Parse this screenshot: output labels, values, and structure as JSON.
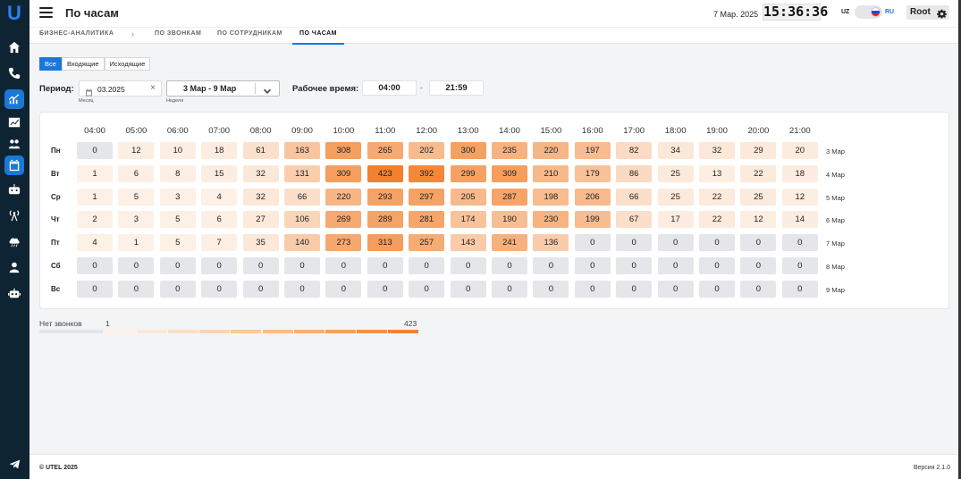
{
  "app": {
    "logo": "U",
    "page_title": "По часам"
  },
  "header": {
    "date": "7 Мар. 2025",
    "clock": "15:36:36",
    "lang_uz": "UZ",
    "lang_ru": "RU",
    "user": "Root"
  },
  "breadcrumbs": [
    {
      "label": "БИЗНЕС-АНАЛИТИКА",
      "active": false
    },
    {
      "label": "ПО ЗВОНКАМ",
      "active": false
    },
    {
      "label": "ПО СОТРУДНИКАМ",
      "active": false
    },
    {
      "label": "ПО ЧАСАМ",
      "active": true
    }
  ],
  "filters": {
    "call_types": [
      {
        "label": "Все",
        "active": true
      },
      {
        "label": "Входящие",
        "active": false
      },
      {
        "label": "Исходящие",
        "active": false
      }
    ],
    "period_label": "Период:",
    "month_value": "03.2025",
    "month_clear": "×",
    "month_sublabel": "Месяц",
    "week_value": "3 Мар - 9 Мар",
    "week_sublabel": "Неделя",
    "work_time_label": "Рабочее время:",
    "work_from": "04:00",
    "work_dash": "-",
    "work_to": "21:59"
  },
  "heatmap": {
    "hours": [
      "04:00",
      "05:00",
      "06:00",
      "07:00",
      "08:00",
      "09:00",
      "10:00",
      "11:00",
      "12:00",
      "13:00",
      "14:00",
      "15:00",
      "16:00",
      "17:00",
      "18:00",
      "19:00",
      "20:00",
      "21:00"
    ],
    "max": 423,
    "rows": [
      {
        "day": "Пн",
        "date": "3 Мар",
        "values": [
          0,
          12,
          10,
          18,
          61,
          163,
          308,
          265,
          202,
          300,
          235,
          220,
          197,
          82,
          34,
          32,
          29,
          20
        ]
      },
      {
        "day": "Вт",
        "date": "4 Мар",
        "values": [
          1,
          6,
          8,
          15,
          32,
          131,
          309,
          423,
          392,
          299,
          309,
          210,
          179,
          86,
          25,
          13,
          22,
          18
        ]
      },
      {
        "day": "Ср",
        "date": "5 Мар",
        "values": [
          1,
          5,
          3,
          4,
          32,
          66,
          220,
          293,
          297,
          205,
          287,
          198,
          206,
          66,
          25,
          22,
          25,
          12
        ]
      },
      {
        "day": "Чт",
        "date": "6 Мар",
        "values": [
          2,
          3,
          5,
          6,
          27,
          106,
          269,
          289,
          281,
          174,
          190,
          230,
          199,
          67,
          17,
          22,
          12,
          14
        ]
      },
      {
        "day": "Пт",
        "date": "7 Мар",
        "values": [
          4,
          1,
          5,
          7,
          35,
          140,
          273,
          313,
          257,
          143,
          241,
          136,
          0,
          0,
          0,
          0,
          0,
          0
        ]
      },
      {
        "day": "Сб",
        "date": "8 Мар",
        "values": [
          0,
          0,
          0,
          0,
          0,
          0,
          0,
          0,
          0,
          0,
          0,
          0,
          0,
          0,
          0,
          0,
          0,
          0
        ]
      },
      {
        "day": "Вс",
        "date": "9 Мар",
        "values": [
          0,
          0,
          0,
          0,
          0,
          0,
          0,
          0,
          0,
          0,
          0,
          0,
          0,
          0,
          0,
          0,
          0,
          0
        ]
      }
    ]
  },
  "legend": {
    "no_calls": "Нет звонков",
    "min": "1",
    "max": "423",
    "no_calls_color": "#e4e6ea",
    "scale_colors": [
      "#fdf0e6",
      "#fde8d6",
      "#fce0c6",
      "#fbd5b2",
      "#fac99c",
      "#f9bd87",
      "#f8af70",
      "#f6a05a",
      "#f59145",
      "#f38330"
    ]
  },
  "footer": {
    "copyright": "© UTEL 2025",
    "version": "Версия 2.1.0"
  },
  "colors": {
    "accent": "#1b78d8",
    "sidebar": "#0f2433"
  }
}
